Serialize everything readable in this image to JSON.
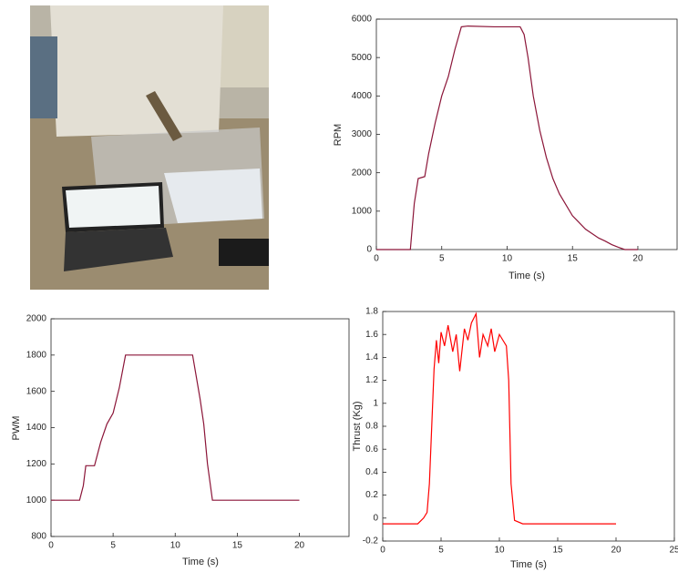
{
  "chart_data": [
    {
      "type": "line",
      "xlabel": "Time (s)",
      "ylabel": "RPM",
      "color": "#8b1538",
      "xlim": [
        0,
        23
      ],
      "xticks": [
        0,
        5,
        10,
        15,
        20
      ],
      "ylim": [
        0,
        6000
      ],
      "yticks": [
        0,
        1000,
        2000,
        3000,
        4000,
        5000,
        6000
      ],
      "x": [
        0,
        2.6,
        2.9,
        3.2,
        3.7,
        4,
        4.5,
        5,
        5.5,
        6,
        6.5,
        7,
        9,
        11,
        11.3,
        11.6,
        12,
        12.5,
        13,
        13.5,
        14,
        15,
        16,
        17,
        17.5,
        18,
        18.5,
        19,
        20
      ],
      "values": [
        0,
        0,
        1200,
        1850,
        1900,
        2500,
        3300,
        4000,
        4500,
        5200,
        5800,
        5820,
        5800,
        5800,
        5600,
        5000,
        4000,
        3100,
        2400,
        1850,
        1450,
        880,
        530,
        300,
        220,
        130,
        60,
        0,
        0
      ]
    },
    {
      "type": "line",
      "xlabel": "Time (s)",
      "ylabel": "PWM",
      "color": "#8b1538",
      "xlim": [
        0,
        24
      ],
      "xticks": [
        0,
        5,
        10,
        15,
        20
      ],
      "ylim": [
        800,
        2000
      ],
      "yticks": [
        800,
        1000,
        1200,
        1400,
        1600,
        1800,
        2000
      ],
      "x": [
        0,
        2.3,
        2.6,
        2.8,
        3.5,
        4,
        4.5,
        5,
        5.5,
        6,
        8,
        11.4,
        12,
        12.3,
        12.6,
        13,
        14,
        16,
        20
      ],
      "values": [
        1000,
        1000,
        1080,
        1190,
        1190,
        1320,
        1420,
        1480,
        1620,
        1800,
        1800,
        1800,
        1560,
        1420,
        1200,
        1000,
        1000,
        1000,
        1000
      ]
    },
    {
      "type": "line",
      "xlabel": "Time (s)",
      "ylabel": "Thrust (Kg)",
      "color": "#ff0000",
      "xlim": [
        0,
        25
      ],
      "xticks": [
        0,
        5,
        10,
        15,
        20,
        25
      ],
      "ylim": [
        -0.2,
        1.8
      ],
      "yticks": [
        -0.2,
        0,
        0.2,
        0.4,
        0.6,
        0.8,
        1,
        1.2,
        1.4,
        1.6,
        1.8
      ],
      "x": [
        0,
        3,
        3.5,
        3.8,
        4,
        4.2,
        4.4,
        4.6,
        4.8,
        5,
        5.3,
        5.6,
        6,
        6.3,
        6.6,
        7,
        7.3,
        7.6,
        8,
        8.3,
        8.6,
        9,
        9.3,
        9.6,
        10,
        10.3,
        10.6,
        10.8,
        11,
        11.3,
        12,
        15,
        20
      ],
      "values": [
        -0.05,
        -0.05,
        0,
        0.05,
        0.3,
        0.8,
        1.3,
        1.55,
        1.35,
        1.62,
        1.5,
        1.68,
        1.45,
        1.6,
        1.28,
        1.65,
        1.55,
        1.7,
        1.78,
        1.4,
        1.6,
        1.5,
        1.65,
        1.45,
        1.6,
        1.55,
        1.5,
        1.2,
        0.3,
        -0.02,
        -0.05,
        -0.05,
        -0.05
      ]
    }
  ]
}
